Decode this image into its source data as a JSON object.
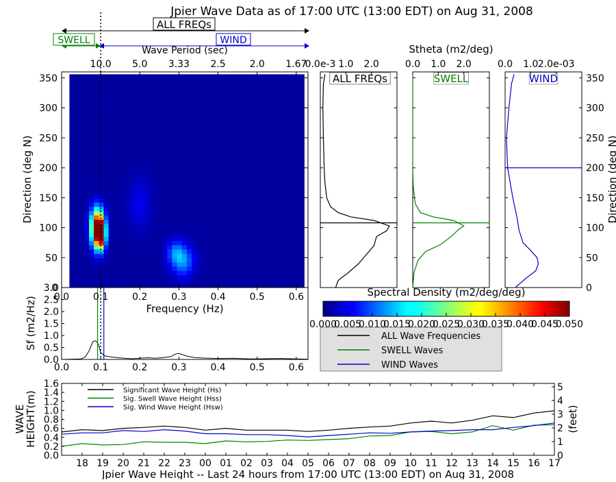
{
  "title": "Jpier Wave Data as of 17:00 UTC (13:00 EDT) on Aug 31, 2008",
  "band_labels": {
    "all": "ALL FREQs",
    "swell": "SWELL",
    "wind": "WIND"
  },
  "colors": {
    "all": "#000000",
    "swell": "#008000",
    "wind": "#0000cc"
  },
  "chart_data": [
    {
      "id": "directional-spectrum",
      "type": "heatmap",
      "xlabel": "Frequency (Hz)",
      "ylabel": "Direction (deg N)",
      "top_axis_label": "Wave Period (sec)",
      "xlim": [
        0.0,
        0.63
      ],
      "ylim": [
        0,
        360
      ],
      "x_ticks": [
        "0.0",
        "0.1",
        "0.2",
        "0.3",
        "0.4",
        "0.5",
        "0.6"
      ],
      "y_ticks": [
        "0",
        "50",
        "100",
        "150",
        "200",
        "250",
        "300",
        "350"
      ],
      "top_ticks": [
        {
          "freq": 0.1,
          "label": "10.0"
        },
        {
          "freq": 0.2,
          "label": "5.0"
        },
        {
          "freq": 0.3,
          "label": "3.33"
        },
        {
          "freq": 0.4,
          "label": "2.5"
        },
        {
          "freq": 0.5,
          "label": "2.0"
        },
        {
          "freq": 0.6,
          "label": "1.67"
        }
      ],
      "data_extent": {
        "freq": [
          0.02,
          0.62
        ],
        "dir": [
          0,
          356
        ]
      },
      "swell_wind_separation_freq": 0.1,
      "hotspots": [
        {
          "freq": 0.092,
          "dir": 100,
          "density": 0.05,
          "sf": 0.012,
          "sd": 22
        },
        {
          "freq": 0.1,
          "dir": 88,
          "density": 0.032,
          "sf": 0.008,
          "sd": 16
        },
        {
          "freq": 0.31,
          "dir": 45,
          "density": 0.012,
          "sf": 0.02,
          "sd": 18
        },
        {
          "freq": 0.29,
          "dir": 60,
          "density": 0.008,
          "sf": 0.015,
          "sd": 14
        },
        {
          "freq": 0.2,
          "dir": 140,
          "density": 0.004,
          "sf": 0.02,
          "sd": 30
        }
      ],
      "background_density": 0.0015,
      "colorbar": {
        "label": "Spectral Density (m2/deg/deg)",
        "ticks": [
          "0.000",
          "0.005",
          "0.010",
          "0.015",
          "0.020",
          "0.025",
          "0.030",
          "0.035",
          "0.040",
          "0.045",
          "0.050"
        ],
        "range": [
          0.0,
          0.05
        ]
      }
    },
    {
      "id": "frequency-spectrum",
      "type": "line",
      "xlabel": "Frequency (Hz)",
      "ylabel": "Sf (m2/Hz)",
      "xlim": [
        0.0,
        0.63
      ],
      "ylim": [
        0.0,
        3.0
      ],
      "x_ticks": [
        "0.0",
        "0.1",
        "0.2",
        "0.3",
        "0.4",
        "0.5",
        "0.6"
      ],
      "y_ticks": [
        "0.0",
        "0.5",
        "1.0",
        "1.5",
        "2.0",
        "2.5",
        "3.0"
      ],
      "x": [
        0.0,
        0.05,
        0.06,
        0.07,
        0.08,
        0.085,
        0.09,
        0.095,
        0.1,
        0.11,
        0.12,
        0.14,
        0.16,
        0.18,
        0.2,
        0.22,
        0.24,
        0.26,
        0.28,
        0.29,
        0.3,
        0.31,
        0.32,
        0.34,
        0.36,
        0.4,
        0.44,
        0.48,
        0.52,
        0.56,
        0.6,
        0.63
      ],
      "series": [
        {
          "values": [
            0.0,
            0.02,
            0.1,
            0.35,
            0.75,
            0.78,
            0.74,
            0.6,
            0.28,
            0.15,
            0.12,
            0.08,
            0.05,
            0.03,
            0.05,
            0.07,
            0.05,
            0.08,
            0.12,
            0.22,
            0.25,
            0.2,
            0.14,
            0.08,
            0.06,
            0.04,
            0.05,
            0.02,
            0.03,
            0.04,
            0.02,
            0.01
          ]
        }
      ],
      "markers": {
        "swell_peak_freq": 0.092,
        "wind_peak_freq": 0.108,
        "separation_freq": 0.1
      }
    },
    {
      "id": "stheta-all",
      "type": "line",
      "label": "ALL FREQs",
      "xlim": [
        0.0,
        3.0
      ],
      "ylim": [
        0,
        360
      ],
      "x_tick_labels": [
        "0.0e-3",
        "1.0",
        "2.0"
      ],
      "x_tick_values": [
        0.0,
        1.0,
        2.0
      ],
      "mean_direction": 108,
      "points": [
        [
          0.6,
          0
        ],
        [
          0.7,
          12
        ],
        [
          1.1,
          25
        ],
        [
          1.5,
          40
        ],
        [
          1.8,
          55
        ],
        [
          2.1,
          70
        ],
        [
          2.2,
          85
        ],
        [
          2.6,
          95
        ],
        [
          2.7,
          103
        ],
        [
          2.1,
          112
        ],
        [
          1.2,
          118
        ],
        [
          0.7,
          125
        ],
        [
          0.4,
          135
        ],
        [
          0.25,
          150
        ],
        [
          0.18,
          175
        ],
        [
          0.15,
          200
        ],
        [
          0.12,
          250
        ],
        [
          0.1,
          300
        ],
        [
          0.12,
          340
        ],
        [
          0.18,
          356
        ]
      ]
    },
    {
      "id": "stheta-swell",
      "type": "line",
      "label": "SWELL",
      "xlabel": "Stheta (m2/deg)",
      "xlim": [
        0.0,
        3.0
      ],
      "ylim": [
        0,
        360
      ],
      "x_tick_labels": [
        "0.0",
        "1.0",
        "2.0"
      ],
      "x_tick_values": [
        0.0,
        1.0,
        2.0
      ],
      "mean_direction": 108,
      "points": [
        [
          0.0,
          0
        ],
        [
          0.05,
          25
        ],
        [
          0.2,
          45
        ],
        [
          0.5,
          60
        ],
        [
          1.1,
          72
        ],
        [
          1.5,
          85
        ],
        [
          1.8,
          97
        ],
        [
          2.0,
          103
        ],
        [
          1.6,
          112
        ],
        [
          0.8,
          118
        ],
        [
          0.3,
          125
        ],
        [
          0.1,
          140
        ],
        [
          0.02,
          170
        ],
        [
          0.0,
          200
        ],
        [
          0.0,
          260
        ],
        [
          0.0,
          356
        ]
      ]
    },
    {
      "id": "stheta-wind",
      "type": "line",
      "label": "WIND",
      "xlim": [
        0.0,
        3.0
      ],
      "ylim": [
        0,
        360
      ],
      "x_tick_labels": [
        "0.0",
        "1.0",
        "2.0e-03"
      ],
      "x_tick_values": [
        0.0,
        1.0,
        2.0
      ],
      "mean_direction": 200,
      "points": [
        [
          0.4,
          0
        ],
        [
          0.8,
          15
        ],
        [
          1.2,
          28
        ],
        [
          1.3,
          40
        ],
        [
          1.25,
          50
        ],
        [
          1.0,
          62
        ],
        [
          0.7,
          75
        ],
        [
          0.55,
          95
        ],
        [
          0.45,
          120
        ],
        [
          0.3,
          150
        ],
        [
          0.1,
          200
        ],
        [
          0.05,
          250
        ],
        [
          0.15,
          300
        ],
        [
          0.25,
          340
        ],
        [
          0.35,
          356
        ]
      ]
    },
    {
      "id": "wave-height-history",
      "type": "line",
      "title": "Jpier Wave Height -- Last 24 hours from 17:00 UTC (13:00 EDT) on Aug 31, 2008",
      "ylabel": "WAVE HEIGHT(m)",
      "ylabel_lines": [
        "WAVE",
        "HEIGHT(m)"
      ],
      "y2label": "(feet)",
      "ylim": [
        0.0,
        1.6
      ],
      "y_ticks": [
        "0.0",
        "0.2",
        "0.4",
        "0.6",
        "0.8",
        "1.0",
        "1.2",
        "1.4",
        "1.6"
      ],
      "y2_ticks": [
        "0",
        "1",
        "2",
        "3",
        "4",
        "5"
      ],
      "x_ticks": [
        "18",
        "19",
        "20",
        "21",
        "22",
        "23",
        "00",
        "01",
        "02",
        "03",
        "04",
        "05",
        "06",
        "07",
        "08",
        "09",
        "10",
        "11",
        "12",
        "13",
        "14",
        "15",
        "16",
        "17"
      ],
      "x": [
        0,
        1,
        2,
        3,
        4,
        5,
        6,
        7,
        8,
        9,
        10,
        11,
        12,
        13,
        14,
        15,
        16,
        17,
        18,
        19,
        20,
        21,
        22,
        23,
        24
      ],
      "series": [
        {
          "name": "Significant Wave Height (Hs)",
          "color": "#000000",
          "values": [
            0.52,
            0.57,
            0.55,
            0.6,
            0.62,
            0.65,
            0.62,
            0.56,
            0.6,
            0.56,
            0.56,
            0.56,
            0.53,
            0.56,
            0.6,
            0.63,
            0.65,
            0.72,
            0.76,
            0.72,
            0.78,
            0.88,
            0.84,
            0.94,
            0.99
          ]
        },
        {
          "name": "Sig. Swell Wave Height (Hss)",
          "color": "#008000",
          "values": [
            0.2,
            0.26,
            0.23,
            0.24,
            0.3,
            0.29,
            0.29,
            0.26,
            0.32,
            0.3,
            0.31,
            0.34,
            0.33,
            0.35,
            0.37,
            0.43,
            0.44,
            0.52,
            0.53,
            0.48,
            0.52,
            0.66,
            0.56,
            0.67,
            0.68
          ]
        },
        {
          "name": "Sig. Wind Wave Height (Hsw)",
          "color": "#0000cc",
          "values": [
            0.47,
            0.5,
            0.5,
            0.55,
            0.53,
            0.57,
            0.54,
            0.48,
            0.48,
            0.46,
            0.46,
            0.44,
            0.41,
            0.44,
            0.47,
            0.5,
            0.49,
            0.52,
            0.54,
            0.55,
            0.57,
            0.57,
            0.62,
            0.66,
            0.72
          ]
        }
      ]
    }
  ],
  "legend": {
    "items": [
      {
        "label": "ALL Wave Frequencies",
        "color": "#000000"
      },
      {
        "label": "SWELL Waves",
        "color": "#008000"
      },
      {
        "label": "WIND Waves",
        "color": "#0000cc"
      }
    ]
  }
}
